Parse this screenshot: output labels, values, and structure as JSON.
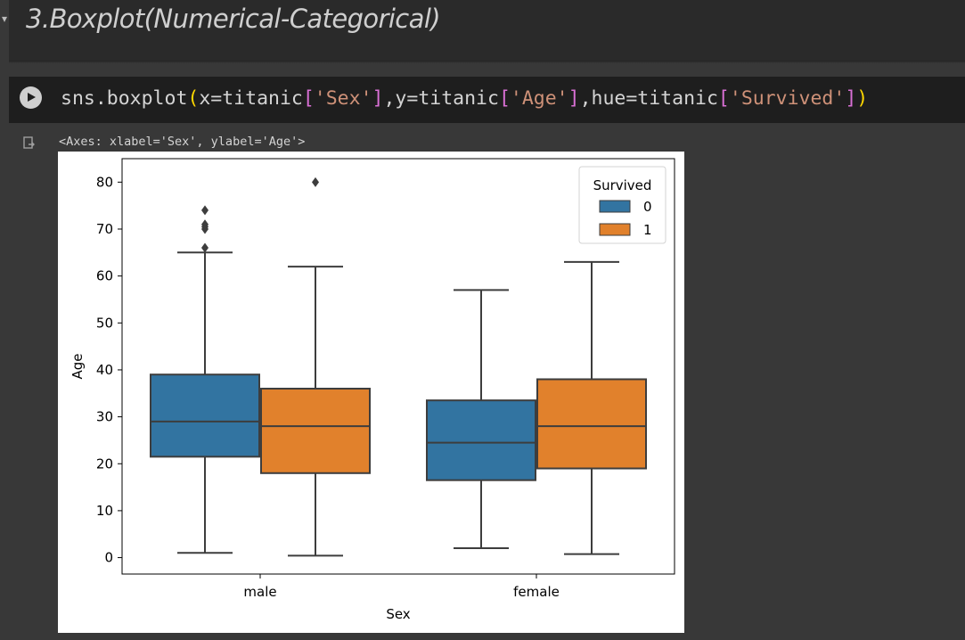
{
  "text_cell": {
    "heading": "3.Boxplot(Numerical-Categorical)"
  },
  "code_cell": {
    "tokens": [
      {
        "t": "sns.boxplot",
        "c": "plain"
      },
      {
        "t": "(",
        "c": "paren"
      },
      {
        "t": "x=titanic",
        "c": "plain"
      },
      {
        "t": "[",
        "c": "bracket"
      },
      {
        "t": "'Sex'",
        "c": "string"
      },
      {
        "t": "]",
        "c": "bracket"
      },
      {
        "t": ",y=titanic",
        "c": "plain"
      },
      {
        "t": "[",
        "c": "bracket"
      },
      {
        "t": "'Age'",
        "c": "string"
      },
      {
        "t": "]",
        "c": "bracket"
      },
      {
        "t": ",hue=titanic",
        "c": "plain"
      },
      {
        "t": "[",
        "c": "bracket"
      },
      {
        "t": "'Survived'",
        "c": "string"
      },
      {
        "t": "]",
        "c": "bracket"
      },
      {
        "t": ")",
        "c": "paren"
      }
    ]
  },
  "output": {
    "repr": "<Axes: xlabel='Sex', ylabel='Age'>"
  },
  "chart_data": {
    "type": "boxplot",
    "xlabel": "Sex",
    "ylabel": "Age",
    "categories": [
      "male",
      "female"
    ],
    "y_ticks": [
      0,
      10,
      20,
      30,
      40,
      50,
      60,
      70,
      80
    ],
    "ylim": [
      -3.5,
      85
    ],
    "grid": false,
    "legend": {
      "title": "Survived",
      "placement": "top-right"
    },
    "series": [
      {
        "name": "0",
        "color": "#3274a1",
        "boxes": [
          {
            "category": "male",
            "whisker_low": 1,
            "q1": 21.5,
            "median": 29,
            "q3": 39,
            "whisker_high": 65,
            "outliers": [
              66,
              70,
              70.5,
              71,
              74
            ]
          },
          {
            "category": "female",
            "whisker_low": 2,
            "q1": 16.5,
            "median": 24.5,
            "q3": 33.5,
            "whisker_high": 57,
            "outliers": []
          }
        ]
      },
      {
        "name": "1",
        "color": "#e1812c",
        "boxes": [
          {
            "category": "male",
            "whisker_low": 0.42,
            "q1": 18,
            "median": 28,
            "q3": 36,
            "whisker_high": 62,
            "outliers": [
              80
            ]
          },
          {
            "category": "female",
            "whisker_low": 0.75,
            "q1": 19,
            "median": 28,
            "q3": 38,
            "whisker_high": 63,
            "outliers": []
          }
        ]
      }
    ]
  }
}
